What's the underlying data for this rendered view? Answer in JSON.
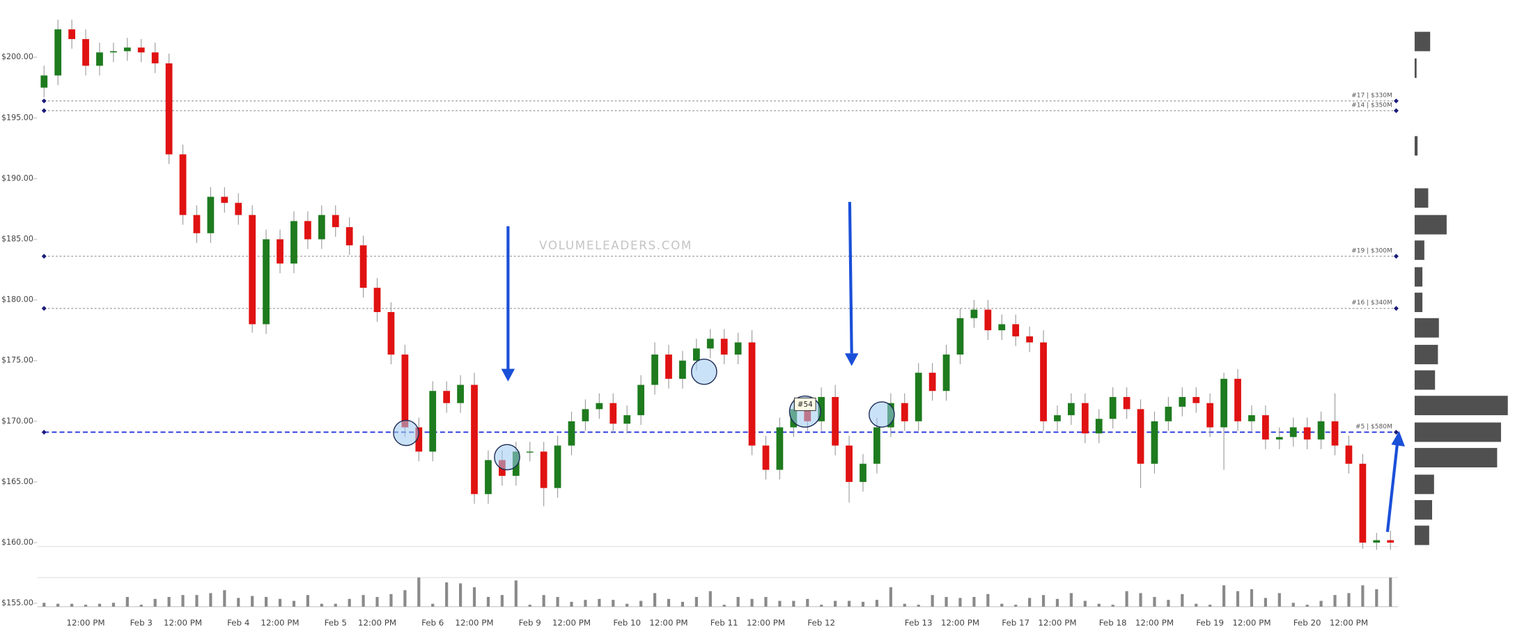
{
  "chart_data": {
    "type": "candlestick",
    "watermark": "VOLUMELEADERS.COM",
    "callout": "#54",
    "up_color": "#1e7b1e",
    "down_color": "#e01212",
    "volume_color": "#8a8a8a",
    "ylim": [
      154.72,
      204.72
    ],
    "yticks": [
      {
        "value": 155,
        "label": "$155.00"
      },
      {
        "value": 160,
        "label": "$160.00"
      },
      {
        "value": 165,
        "label": "$165.00"
      },
      {
        "value": 170,
        "label": "$170.00"
      },
      {
        "value": 175,
        "label": "$175.00"
      },
      {
        "value": 180,
        "label": "$180.00"
      },
      {
        "value": 185,
        "label": "$185.00"
      },
      {
        "value": 190,
        "label": "$190.00"
      },
      {
        "value": 195,
        "label": "$195.00"
      },
      {
        "value": 200,
        "label": "$200.00"
      }
    ],
    "levels": [
      {
        "value": 196.4,
        "label": "#17 | $330M",
        "color": "#999999"
      },
      {
        "value": 195.6,
        "label": "#14 | $350M",
        "color": "#999999"
      },
      {
        "value": 183.6,
        "label": "#19 | $300M",
        "color": "#999999"
      },
      {
        "value": 179.3,
        "label": "#16 | $340M",
        "color": "#999999"
      },
      {
        "value": 169.1,
        "label": "#5 | $580M",
        "color": "#2233dd"
      }
    ],
    "categories": [
      null,
      null,
      null,
      "12:00 PM",
      null,
      null,
      null,
      "Feb 3",
      null,
      null,
      "12:00 PM",
      null,
      null,
      null,
      "Feb 4",
      null,
      null,
      "12:00 PM",
      null,
      null,
      null,
      "Feb 5",
      null,
      null,
      "12:00 PM",
      null,
      null,
      null,
      "Feb 6",
      null,
      null,
      "12:00 PM",
      null,
      null,
      null,
      "Feb 9",
      null,
      null,
      "12:00 PM",
      null,
      null,
      null,
      "Feb 10",
      null,
      null,
      "12:00 PM",
      null,
      null,
      null,
      "Feb 11",
      null,
      null,
      "12:00 PM",
      null,
      null,
      null,
      "Feb 12",
      null,
      null,
      null,
      null,
      null,
      null,
      "Feb 13",
      null,
      null,
      "12:00 PM",
      null,
      null,
      null,
      "Feb 17",
      null,
      null,
      "12:00 PM",
      null,
      null,
      null,
      "Feb 18",
      null,
      null,
      "12:00 PM",
      null,
      null,
      null,
      "Feb 19",
      null,
      null,
      "12:00 PM",
      null,
      null,
      null,
      "Feb 20",
      null,
      null,
      "12:00 PM",
      null,
      null,
      null
    ],
    "open": [
      197.5,
      198.5,
      202.3,
      201.5,
      199.3,
      200.4,
      200.5,
      200.8,
      200.4,
      199.5,
      192.0,
      187.0,
      185.5,
      188.5,
      188.0,
      187.0,
      178.0,
      185.0,
      183.0,
      186.5,
      185.0,
      187.0,
      186.0,
      184.5,
      181.0,
      179.0,
      175.5,
      169.5,
      167.5,
      172.5,
      171.5,
      173.0,
      164.0,
      166.8,
      165.5,
      167.5,
      167.5,
      164.5,
      168.0,
      170.0,
      171.0,
      171.5,
      169.8,
      170.5,
      173.0,
      175.5,
      173.5,
      175.0,
      176.0,
      176.8,
      175.5,
      176.5,
      168.0,
      166.0,
      169.5,
      171.0,
      170.0,
      172.0,
      168.0,
      165.0,
      166.5,
      169.5,
      171.5,
      170.0,
      174.0,
      172.5,
      175.5,
      178.5,
      179.2,
      177.5,
      178.0,
      177.0,
      176.5,
      170.0,
      170.5,
      171.5,
      169.0,
      170.2,
      172.0,
      171.0,
      166.5,
      170.0,
      171.2,
      172.0,
      171.5,
      169.5,
      173.5,
      170.0,
      170.5,
      168.5,
      168.7,
      169.5,
      168.5,
      170.0,
      168.0,
      166.5,
      160.0,
      160.2
    ],
    "high": [
      199.3,
      203.1,
      203.1,
      202.3,
      201.2,
      201.2,
      201.6,
      201.5,
      201.2,
      200.3,
      192.8,
      187.8,
      189.3,
      189.3,
      188.8,
      187.8,
      185.8,
      185.8,
      187.3,
      187.3,
      187.8,
      187.8,
      186.8,
      185.3,
      181.8,
      179.8,
      176.3,
      170.3,
      173.3,
      173.3,
      173.8,
      174.0,
      167.6,
      167.6,
      168.3,
      168.3,
      168.3,
      168.8,
      170.8,
      171.8,
      172.3,
      172.3,
      171.3,
      173.8,
      176.5,
      176.3,
      175.8,
      176.8,
      177.6,
      177.6,
      177.3,
      177.5,
      168.8,
      170.3,
      171.8,
      171.8,
      172.8,
      173.0,
      168.8,
      167.3,
      170.3,
      172.3,
      172.3,
      174.8,
      174.8,
      176.3,
      179.3,
      180.0,
      180.0,
      178.8,
      178.8,
      177.8,
      177.5,
      171.3,
      172.3,
      172.3,
      171.0,
      172.8,
      172.8,
      171.8,
      170.8,
      172.0,
      172.8,
      172.8,
      172.3,
      174.0,
      174.3,
      171.3,
      171.3,
      169.5,
      170.3,
      170.3,
      170.8,
      172.3,
      168.8,
      167.3,
      160.8,
      161.0
    ],
    "low": [
      196.7,
      197.7,
      200.7,
      198.5,
      198.5,
      199.6,
      199.7,
      199.6,
      198.7,
      191.2,
      186.2,
      184.7,
      184.7,
      187.2,
      186.2,
      177.3,
      177.2,
      182.2,
      182.2,
      184.2,
      184.2,
      185.2,
      183.7,
      180.2,
      178.2,
      174.7,
      168.7,
      166.7,
      166.7,
      170.7,
      170.7,
      163.2,
      163.2,
      164.7,
      164.7,
      166.7,
      163.0,
      163.7,
      167.2,
      169.2,
      170.2,
      169.0,
      169.0,
      169.7,
      172.2,
      172.7,
      172.7,
      174.2,
      175.2,
      174.7,
      174.7,
      167.2,
      165.2,
      165.2,
      168.7,
      169.2,
      169.2,
      167.2,
      163.3,
      164.2,
      165.7,
      168.7,
      169.2,
      169.2,
      171.7,
      171.7,
      174.7,
      177.7,
      176.7,
      176.7,
      176.2,
      175.7,
      169.2,
      169.2,
      169.7,
      168.2,
      168.2,
      169.4,
      170.2,
      164.5,
      165.7,
      169.2,
      170.4,
      170.7,
      168.7,
      166.0,
      169.2,
      169.2,
      167.7,
      167.7,
      167.9,
      167.7,
      167.7,
      167.2,
      165.7,
      159.5,
      159.4,
      159.4
    ],
    "close": [
      198.5,
      202.3,
      201.5,
      199.3,
      200.4,
      200.5,
      200.8,
      200.4,
      199.5,
      192.0,
      187.0,
      185.5,
      188.5,
      188.0,
      187.0,
      178.0,
      185.0,
      183.0,
      186.5,
      185.0,
      187.0,
      186.0,
      184.5,
      181.0,
      179.0,
      175.5,
      169.5,
      167.5,
      172.5,
      171.5,
      173.0,
      164.0,
      166.8,
      165.5,
      167.5,
      167.5,
      164.5,
      168.0,
      170.0,
      171.0,
      171.5,
      169.8,
      170.5,
      173.0,
      175.5,
      173.5,
      175.0,
      176.0,
      176.8,
      175.5,
      176.5,
      168.0,
      166.0,
      169.5,
      171.0,
      170.0,
      172.0,
      168.0,
      165.0,
      166.5,
      169.5,
      171.5,
      170.0,
      174.0,
      172.5,
      175.5,
      178.5,
      179.2,
      177.5,
      178.0,
      177.0,
      176.5,
      170.0,
      170.5,
      171.5,
      169.0,
      170.2,
      172.0,
      171.0,
      166.5,
      170.0,
      171.2,
      172.0,
      171.5,
      169.5,
      173.5,
      170.0,
      170.5,
      168.5,
      168.7,
      169.5,
      168.5,
      170.0,
      168.0,
      166.5,
      160.0,
      160.2,
      160.0
    ],
    "volume": [
      4,
      3,
      3,
      2,
      3,
      4,
      10,
      2,
      8,
      10,
      12,
      12,
      14,
      17,
      9,
      11,
      10,
      8,
      6,
      12,
      3,
      3,
      8,
      12,
      10,
      13,
      17,
      30,
      3,
      25,
      24,
      20,
      10,
      12,
      27,
      2,
      12,
      10,
      5,
      7,
      8,
      7,
      3,
      6,
      14,
      8,
      5,
      10,
      16,
      2,
      10,
      8,
      10,
      6,
      6,
      8,
      2,
      6,
      6,
      5,
      7,
      20,
      3,
      2,
      12,
      10,
      9,
      10,
      13,
      3,
      2,
      9,
      12,
      8,
      14,
      6,
      3,
      2,
      16,
      14,
      10,
      7,
      13,
      3,
      2,
      22,
      16,
      18,
      9,
      14,
      4,
      2,
      6,
      12,
      14,
      22,
      18,
      30
    ],
    "volume_profile": {
      "prices": [
        201.3,
        199.1,
        192.7,
        188.4,
        186.2,
        184.1,
        181.9,
        179.8,
        177.7,
        175.5,
        173.4,
        171.3,
        169.1,
        167.0,
        164.8,
        162.7,
        160.6
      ],
      "values": [
        16,
        2,
        3,
        14,
        33,
        10,
        8,
        8,
        25,
        24,
        21,
        96,
        89,
        85,
        20,
        18,
        15
      ]
    }
  }
}
